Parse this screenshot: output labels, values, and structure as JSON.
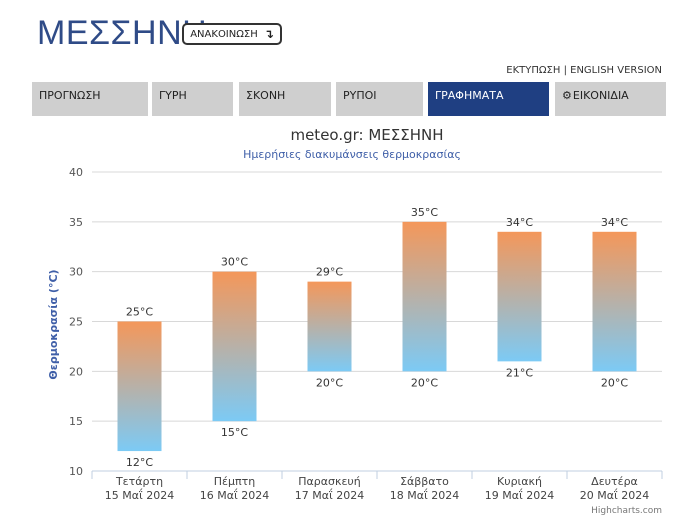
{
  "header": {
    "title": "ΜΕΣΣΗΝΗ",
    "announce_label": "ΑΝΑΚΟΙΝΩΣΗ",
    "announce_icon": "arrow-down-icon",
    "print_label": "ΕΚΤΥΠΩΣΗ",
    "separator": "|",
    "english_label": "ENGLISH VERSION"
  },
  "tabs": [
    {
      "label": "ΠΡΟΓΝΩΣΗ",
      "active": false
    },
    {
      "label": "ΓΥΡΗ",
      "active": false
    },
    {
      "label": "ΣΚΟΝΗ",
      "active": false
    },
    {
      "label": "ΡΥΠΟΙ",
      "active": false
    },
    {
      "label": "ΓΡΑΦΗΜΑΤΑ",
      "active": true
    },
    {
      "label": "ΕΙΚΟΝΙΔΙΑ",
      "active": false,
      "icon": "gear-icon"
    }
  ],
  "colors": {
    "accent": "#1f3f82",
    "tab_bg": "#cfcfcf",
    "bar_top": "#f4975a",
    "bar_bottom": "#7ccaf5",
    "axis_title": "#3f5fa8"
  },
  "chart_data": {
    "type": "bar",
    "subtype": "columnrange",
    "title": "meteo.gr: ΜΕΣΣΗΝΗ",
    "subtitle": "Ημερήσιες διακυμάνσεις θερμοκρασίας",
    "ylabel": "Θερμοκρασία (°C)",
    "xlabel": "",
    "ylim": [
      10,
      40
    ],
    "yticks": [
      10,
      15,
      20,
      25,
      30,
      35,
      40
    ],
    "grid": true,
    "unit": "°C",
    "categories": [
      [
        "Τετάρτη",
        "15 Μαΐ 2024"
      ],
      [
        "Πέμπτη",
        "16 Μαΐ 2024"
      ],
      [
        "Παρασκευή",
        "17 Μαΐ 2024"
      ],
      [
        "Σάββατο",
        "18 Μαΐ 2024"
      ],
      [
        "Κυριακή",
        "19 Μαΐ 2024"
      ],
      [
        "Δευτέρα",
        "20 Μαΐ 2024"
      ]
    ],
    "low": [
      12,
      15,
      20,
      20,
      21,
      20
    ],
    "high": [
      25,
      30,
      29,
      35,
      34,
      34
    ],
    "credits": "Highcharts.com"
  }
}
